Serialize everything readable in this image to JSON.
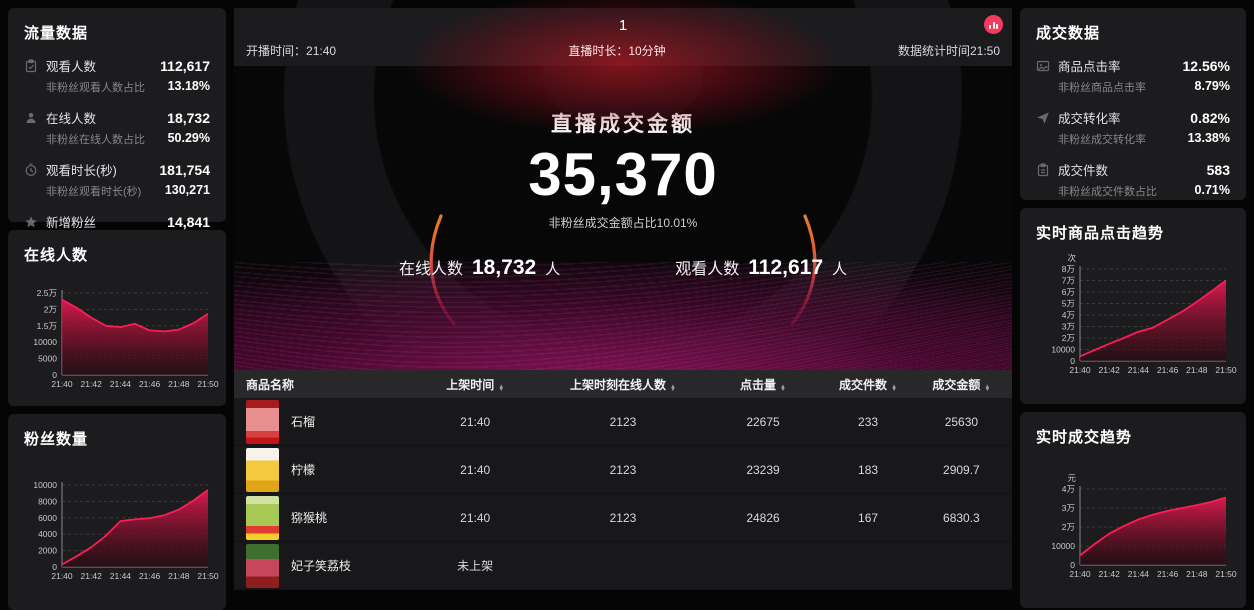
{
  "colors": {
    "accent": "#f5214f",
    "accent_orange": "#ff7a2d",
    "panel_bg": "#1c1c1f",
    "live_badge": "#f43b5e",
    "chart_line": "#fa1e55"
  },
  "left": {
    "traffic": {
      "title": "流量数据",
      "items": [
        {
          "icon": "clipboard-icon",
          "label": "观看人数",
          "value": "112,617",
          "sub_label": "非粉丝观看人数占比",
          "sub_value": "13.18%"
        },
        {
          "icon": "user-icon",
          "label": "在线人数",
          "value": "18,732",
          "sub_label": "非粉丝在线人数占比",
          "sub_value": "50.29%"
        },
        {
          "icon": "clock-icon",
          "label": "观看时长(秒)",
          "value": "181,754",
          "sub_label": "非粉丝观看时长(秒)",
          "sub_value": "130,271"
        },
        {
          "icon": "star-icon",
          "label": "新增粉丝",
          "value": "14,841"
        }
      ]
    },
    "online_chart": {
      "title": "在线人数"
    },
    "fans_chart": {
      "title": "粉丝数量"
    }
  },
  "center": {
    "header": {
      "title": "1",
      "start_label": "开播时间：",
      "start_value": "21:40",
      "duration": "直播时长：10分钟",
      "stat_time": "数据统计时间21:50"
    },
    "hero": {
      "gmv_title": "直播成交金额",
      "gmv_value": "35,370",
      "gmv_sub": "非粉丝成交金额占比10.01%",
      "online_label": "在线人数",
      "online_value": "18,732",
      "online_unit": "人",
      "viewers_label": "观看人数",
      "viewers_value": "112,617",
      "viewers_unit": "人"
    },
    "table": {
      "columns": [
        "商品名称",
        "上架时间",
        "上架时刻在线人数",
        "点击量",
        "成交件数",
        "成交金额"
      ],
      "rows": [
        {
          "name": "石榴",
          "time": "21:40",
          "online": "2123",
          "clicks": "22675",
          "orders": "233",
          "gmv": "25630"
        },
        {
          "name": "柠檬",
          "time": "21:40",
          "online": "2123",
          "clicks": "23239",
          "orders": "183",
          "gmv": "2909.7"
        },
        {
          "name": "猕猴桃",
          "time": "21:40",
          "online": "2123",
          "clicks": "24826",
          "orders": "167",
          "gmv": "6830.3"
        },
        {
          "name": "妃子笑荔枝",
          "time": "未上架",
          "online": "",
          "clicks": "",
          "orders": "",
          "gmv": ""
        }
      ]
    }
  },
  "right": {
    "deal": {
      "title": "成交数据",
      "items": [
        {
          "icon": "image-icon",
          "label": "商品点击率",
          "value": "12.56%",
          "sub_label": "非粉丝商品点击率",
          "sub_value": "8.79%"
        },
        {
          "icon": "send-icon",
          "label": "成交转化率",
          "value": "0.82%",
          "sub_label": "非粉丝成交转化率",
          "sub_value": "13.38%"
        },
        {
          "icon": "clipboard-icon",
          "label": "成交件数",
          "value": "583",
          "sub_label": "非粉丝成交件数占比",
          "sub_value": "0.71%"
        }
      ]
    },
    "clicks_chart": {
      "title": "实时商品点击趋势"
    },
    "gmv_chart": {
      "title": "实时成交趋势"
    }
  },
  "chart_data": [
    {
      "id": "online_users",
      "type": "area",
      "title": "在线人数",
      "x": [
        "21:40",
        "21:41",
        "21:42",
        "21:43",
        "21:44",
        "21:45",
        "21:46",
        "21:47",
        "21:48",
        "21:49",
        "21:50"
      ],
      "x_tick_labels": [
        "21:40",
        "21:42",
        "21:44",
        "21:46",
        "21:48",
        "21:50"
      ],
      "values": [
        23000,
        20500,
        17500,
        15000,
        14600,
        15600,
        13600,
        13300,
        13800,
        15800,
        18700
      ],
      "ylim": [
        0,
        25000
      ],
      "yticks": [
        [
          0,
          "0"
        ],
        [
          5000,
          "5000"
        ],
        [
          10000,
          "10000"
        ],
        [
          15000,
          "1.5万"
        ],
        [
          20000,
          "2万"
        ],
        [
          25000,
          "2.5万"
        ]
      ],
      "grid": "dashed",
      "legend": "none"
    },
    {
      "id": "fans",
      "type": "area",
      "title": "粉丝数量",
      "x": [
        "21:40",
        "21:41",
        "21:42",
        "21:43",
        "21:44",
        "21:45",
        "21:46",
        "21:47",
        "21:48",
        "21:49",
        "21:50"
      ],
      "x_tick_labels": [
        "21:40",
        "21:42",
        "21:44",
        "21:46",
        "21:48",
        "21:50"
      ],
      "values": [
        300,
        1300,
        2400,
        3800,
        5600,
        5800,
        5950,
        6300,
        7000,
        8100,
        9400
      ],
      "ylim": [
        0,
        10000
      ],
      "yticks": [
        [
          0,
          "0"
        ],
        [
          2000,
          "2000"
        ],
        [
          4000,
          "4000"
        ],
        [
          6000,
          "6000"
        ],
        [
          8000,
          "8000"
        ],
        [
          10000,
          "10000"
        ]
      ],
      "grid": "dashed",
      "legend": "none"
    },
    {
      "id": "product_clicks",
      "type": "area",
      "title": "实时商品点击趋势",
      "unit": "次",
      "x": [
        "21:40",
        "21:41",
        "21:42",
        "21:43",
        "21:44",
        "21:45",
        "21:46",
        "21:47",
        "21:48",
        "21:49",
        "21:50"
      ],
      "x_tick_labels": [
        "21:40",
        "21:42",
        "21:44",
        "21:46",
        "21:48",
        "21:50"
      ],
      "values": [
        4000,
        9500,
        15000,
        20000,
        25500,
        29000,
        36000,
        43000,
        51500,
        60500,
        70000
      ],
      "ylim": [
        0,
        80000
      ],
      "yticks": [
        [
          0,
          "0"
        ],
        [
          10000,
          "10000"
        ],
        [
          20000,
          "2万"
        ],
        [
          30000,
          "3万"
        ],
        [
          40000,
          "4万"
        ],
        [
          50000,
          "5万"
        ],
        [
          60000,
          "6万"
        ],
        [
          70000,
          "7万"
        ],
        [
          80000,
          "8万"
        ]
      ],
      "grid": "dashed",
      "legend": "none"
    },
    {
      "id": "gmv_trend",
      "type": "area",
      "title": "实时成交趋势",
      "unit": "元",
      "x": [
        "21:40",
        "21:41",
        "21:42",
        "21:43",
        "21:44",
        "21:45",
        "21:46",
        "21:47",
        "21:48",
        "21:49",
        "21:50"
      ],
      "x_tick_labels": [
        "21:40",
        "21:42",
        "21:44",
        "21:46",
        "21:48",
        "21:50"
      ],
      "values": [
        5000,
        11000,
        16500,
        20500,
        24000,
        26500,
        28500,
        30000,
        31500,
        33200,
        35500
      ],
      "ylim": [
        0,
        40000
      ],
      "yticks": [
        [
          0,
          "0"
        ],
        [
          10000,
          "10000"
        ],
        [
          20000,
          "2万"
        ],
        [
          30000,
          "3万"
        ],
        [
          40000,
          "4万"
        ]
      ],
      "grid": "dashed",
      "legend": "none"
    }
  ]
}
